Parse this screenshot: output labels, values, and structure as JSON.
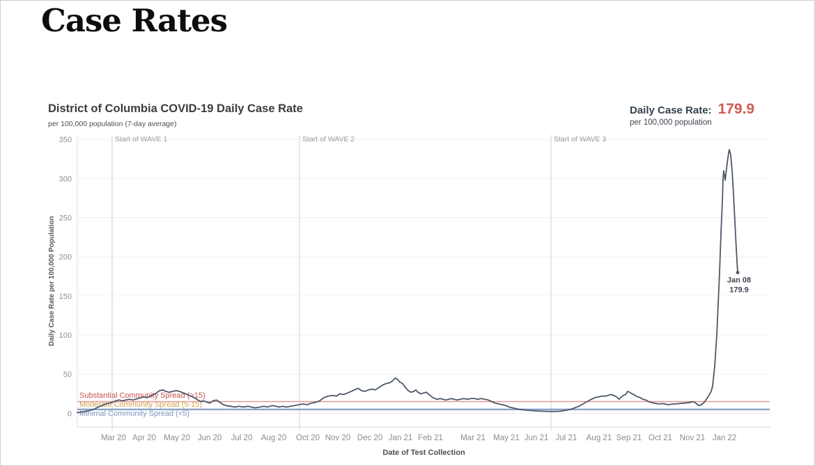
{
  "page": {
    "title": "Case Rates"
  },
  "chart": {
    "title": "District of Columbia COVID-19 Daily Case Rate",
    "subtitle": "per 100,000 population (7-day average)"
  },
  "stat": {
    "label": "Daily Case Rate:",
    "value": "179.9",
    "sub": "per 100,000 population"
  },
  "chart_data": {
    "type": "line",
    "title": "District of Columbia COVID-19 Daily Case Rate",
    "xlabel": "Date of Test Collection",
    "ylabel": "Daily Case Rate per 100,000 Population",
    "ylim": [
      0,
      350
    ],
    "grid": true,
    "y_ticks": [
      0,
      50,
      100,
      150,
      200,
      250,
      300,
      350
    ],
    "x_axis_span": {
      "start": "Mar 2020",
      "end": "Jan 2022"
    },
    "x_ticks": [
      {
        "label": "Mar 20",
        "x_offset": 52
      },
      {
        "label": "Apr 20",
        "x_offset": 96
      },
      {
        "label": "May 20",
        "x_offset": 143
      },
      {
        "label": "Jun 20",
        "x_offset": 190
      },
      {
        "label": "Jul 20",
        "x_offset": 236
      },
      {
        "label": "Aug 20",
        "x_offset": 282
      },
      {
        "label": "Oct 20",
        "x_offset": 331
      },
      {
        "label": "Nov 20",
        "x_offset": 374
      },
      {
        "label": "Dec 20",
        "x_offset": 420
      },
      {
        "label": "Jan 21",
        "x_offset": 464
      },
      {
        "label": "Feb 21",
        "x_offset": 507
      },
      {
        "label": "Mar 21",
        "x_offset": 568
      },
      {
        "label": "May 21",
        "x_offset": 616
      },
      {
        "label": "Jun 21",
        "x_offset": 659
      },
      {
        "label": "Jul 21",
        "x_offset": 702
      },
      {
        "label": "Aug 21",
        "x_offset": 749
      },
      {
        "label": "Sep 21",
        "x_offset": 792
      },
      {
        "label": "Oct 21",
        "x_offset": 837
      },
      {
        "label": "Nov 21",
        "x_offset": 883
      },
      {
        "label": "Jan 22",
        "x_offset": 929
      }
    ],
    "wave_annotations": [
      {
        "label": "Start of WAVE 1",
        "x_offset": 50
      },
      {
        "label": "Start of WAVE 2",
        "x_offset": 319
      },
      {
        "label": "Start of WAVE 3",
        "x_offset": 680
      }
    ],
    "reference_lines": [
      {
        "label": "Substantial Community Spread (>15)",
        "value": 15,
        "has_line": true,
        "line_color": "#e8918a",
        "text_color": "#c9504a",
        "width": 1.4,
        "row": 0
      },
      {
        "label": "Moderate Community Spread (5-15)",
        "value": 10,
        "has_line": false,
        "line_color": "",
        "text_color": "#d2a24c",
        "width": 0,
        "row": 1
      },
      {
        "label": "Minimal Community Spread (<5)",
        "value": 5,
        "has_line": true,
        "line_color": "#8ba3c9",
        "text_color": "#8098c5",
        "width": 2.4,
        "row": 2
      }
    ],
    "endpoint_annotation": {
      "label_date": "Jan 08",
      "label_value": "179.9",
      "x_offset": 948,
      "value": 179.9
    },
    "series": [
      {
        "name": "Daily case rate (7-day average)",
        "peak_value": 337,
        "last_value": 179.9,
        "points": [
          [
            0,
            1
          ],
          [
            8,
            2
          ],
          [
            15,
            3
          ],
          [
            23,
            5
          ],
          [
            30,
            8
          ],
          [
            38,
            11
          ],
          [
            45,
            13
          ],
          [
            50,
            14
          ],
          [
            55,
            16
          ],
          [
            60,
            17
          ],
          [
            65,
            16
          ],
          [
            70,
            17
          ],
          [
            75,
            18
          ],
          [
            80,
            17
          ],
          [
            87,
            19
          ],
          [
            95,
            21
          ],
          [
            100,
            20
          ],
          [
            105,
            22
          ],
          [
            112,
            25
          ],
          [
            118,
            29
          ],
          [
            123,
            30
          ],
          [
            127,
            28
          ],
          [
            132,
            27
          ],
          [
            137,
            28
          ],
          [
            142,
            29
          ],
          [
            147,
            28
          ],
          [
            152,
            26
          ],
          [
            158,
            24
          ],
          [
            163,
            22
          ],
          [
            168,
            20
          ],
          [
            173,
            17
          ],
          [
            178,
            15
          ],
          [
            181,
            16
          ],
          [
            184,
            15
          ],
          [
            190,
            13
          ],
          [
            195,
            16
          ],
          [
            200,
            17
          ],
          [
            203,
            15
          ],
          [
            208,
            12
          ],
          [
            213,
            10
          ],
          [
            220,
            9
          ],
          [
            226,
            8
          ],
          [
            232,
            9
          ],
          [
            238,
            8
          ],
          [
            245,
            9
          ],
          [
            250,
            8
          ],
          [
            255,
            7
          ],
          [
            262,
            8
          ],
          [
            268,
            9
          ],
          [
            273,
            8
          ],
          [
            280,
            10
          ],
          [
            285,
            9
          ],
          [
            290,
            8
          ],
          [
            295,
            9
          ],
          [
            300,
            8
          ],
          [
            306,
            9
          ],
          [
            312,
            10
          ],
          [
            318,
            11
          ],
          [
            324,
            12
          ],
          [
            330,
            11
          ],
          [
            336,
            13
          ],
          [
            342,
            14
          ],
          [
            348,
            16
          ],
          [
            354,
            20
          ],
          [
            360,
            22
          ],
          [
            367,
            23
          ],
          [
            372,
            22
          ],
          [
            377,
            25
          ],
          [
            382,
            24
          ],
          [
            388,
            26
          ],
          [
            393,
            28
          ],
          [
            398,
            30
          ],
          [
            403,
            32
          ],
          [
            408,
            29
          ],
          [
            413,
            28
          ],
          [
            418,
            30
          ],
          [
            423,
            31
          ],
          [
            428,
            30
          ],
          [
            433,
            33
          ],
          [
            438,
            36
          ],
          [
            443,
            38
          ],
          [
            448,
            39
          ],
          [
            452,
            41
          ],
          [
            455,
            44
          ],
          [
            457,
            45
          ],
          [
            460,
            43
          ],
          [
            463,
            40
          ],
          [
            467,
            38
          ],
          [
            471,
            33
          ],
          [
            475,
            29
          ],
          [
            479,
            27
          ],
          [
            483,
            28
          ],
          [
            486,
            30
          ],
          [
            489,
            27
          ],
          [
            493,
            25
          ],
          [
            497,
            26
          ],
          [
            501,
            27
          ],
          [
            505,
            24
          ],
          [
            509,
            21
          ],
          [
            513,
            19
          ],
          [
            517,
            18
          ],
          [
            521,
            19
          ],
          [
            525,
            18
          ],
          [
            529,
            17
          ],
          [
            533,
            18
          ],
          [
            537,
            19
          ],
          [
            541,
            18
          ],
          [
            545,
            17
          ],
          [
            550,
            18
          ],
          [
            555,
            19
          ],
          [
            560,
            18
          ],
          [
            565,
            19
          ],
          [
            570,
            19
          ],
          [
            575,
            18
          ],
          [
            580,
            19
          ],
          [
            585,
            18
          ],
          [
            590,
            17
          ],
          [
            595,
            15
          ],
          [
            600,
            13
          ],
          [
            605,
            12
          ],
          [
            610,
            11
          ],
          [
            615,
            10
          ],
          [
            620,
            8
          ],
          [
            625,
            7
          ],
          [
            630,
            6
          ],
          [
            635,
            5
          ],
          [
            640,
            4.5
          ],
          [
            645,
            4
          ],
          [
            652,
            3.5
          ],
          [
            660,
            3
          ],
          [
            668,
            2.7
          ],
          [
            675,
            2.5
          ],
          [
            682,
            2.4
          ],
          [
            690,
            2.5
          ],
          [
            696,
            3
          ],
          [
            702,
            4
          ],
          [
            708,
            5
          ],
          [
            714,
            7
          ],
          [
            720,
            9
          ],
          [
            726,
            12
          ],
          [
            732,
            15
          ],
          [
            738,
            18
          ],
          [
            743,
            20
          ],
          [
            748,
            21
          ],
          [
            753,
            22
          ],
          [
            758,
            22
          ],
          [
            762,
            23
          ],
          [
            766,
            24
          ],
          [
            770,
            23
          ],
          [
            774,
            21
          ],
          [
            778,
            18
          ],
          [
            781,
            21
          ],
          [
            784,
            23
          ],
          [
            787,
            24
          ],
          [
            790,
            28
          ],
          [
            793,
            27
          ],
          [
            796,
            25
          ],
          [
            799,
            24
          ],
          [
            802,
            22
          ],
          [
            805,
            21
          ],
          [
            808,
            20
          ],
          [
            812,
            18
          ],
          [
            816,
            17
          ],
          [
            820,
            15
          ],
          [
            824,
            14
          ],
          [
            828,
            13
          ],
          [
            832,
            12.5
          ],
          [
            836,
            12
          ],
          [
            840,
            12.5
          ],
          [
            844,
            12
          ],
          [
            848,
            11
          ],
          [
            852,
            11.5
          ],
          [
            856,
            12
          ],
          [
            860,
            12
          ],
          [
            864,
            12.5
          ],
          [
            868,
            13
          ],
          [
            872,
            13
          ],
          [
            876,
            13.5
          ],
          [
            880,
            14
          ],
          [
            884,
            15
          ],
          [
            888,
            13
          ],
          [
            892,
            10
          ],
          [
            896,
            11
          ],
          [
            900,
            14
          ],
          [
            903,
            18
          ],
          [
            906,
            22
          ],
          [
            908,
            25
          ],
          [
            910,
            28
          ],
          [
            912,
            35
          ],
          [
            915,
            60
          ],
          [
            918,
            100
          ],
          [
            920,
            140
          ],
          [
            922,
            180
          ],
          [
            924,
            230
          ],
          [
            926,
            270
          ],
          [
            927,
            300
          ],
          [
            928,
            310
          ],
          [
            930,
            298
          ],
          [
            931,
            305
          ],
          [
            933,
            320
          ],
          [
            935,
            333
          ],
          [
            936,
            337
          ],
          [
            938,
            330
          ],
          [
            940,
            310
          ],
          [
            942,
            280
          ],
          [
            944,
            245
          ],
          [
            946,
            210
          ],
          [
            948,
            179.9
          ]
        ]
      }
    ],
    "colors": {
      "line": "#4d5866",
      "grid": "#f0f0f0",
      "axis": "#d9d9d9",
      "pane_border": "#e2e2e2",
      "tick_text": "#8c8c8c",
      "wave_text": "#9a9a9a",
      "wave_line": "#d2d2d2",
      "accent_red": "#d05c52",
      "axis_title_text": "#5a5a5a",
      "endpoint_text": "#3d4653"
    }
  }
}
